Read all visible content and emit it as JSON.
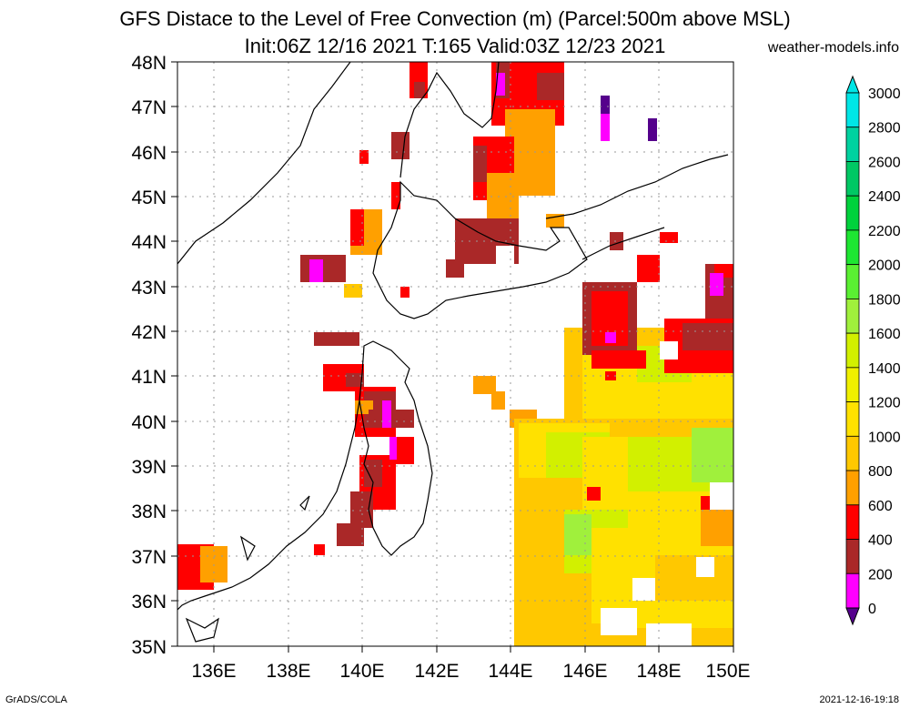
{
  "title_line1": "GFS Distace to the Level of Free Convection (m) (Parcel:500m above MSL)",
  "title_line2": "Init:06Z 12/16 2021 T:165 Valid:03Z 12/23 2021",
  "credit": "weather-models.info",
  "footer_left": "GrADS/COLA",
  "footer_right": "2021-12-16-19:18",
  "map": {
    "lat_labels": [
      "48N",
      "47N",
      "46N",
      "45N",
      "44N",
      "43N",
      "42N",
      "41N",
      "40N",
      "39N",
      "38N",
      "37N",
      "36N",
      "35N"
    ],
    "lon_labels": [
      "136E",
      "138E",
      "140E",
      "142E",
      "144E",
      "146E",
      "148E",
      "150E"
    ],
    "colors": {
      "land_line": "#000000",
      "grid": "#999999"
    }
  },
  "colorbar": {
    "ticks": [
      "3000",
      "2800",
      "2600",
      "2400",
      "2200",
      "2000",
      "1800",
      "1600",
      "1400",
      "1200",
      "1000",
      "800",
      "600",
      "400",
      "200",
      "0"
    ],
    "colors": [
      "#00e6e6",
      "#00d2a0",
      "#00c864",
      "#00d23c",
      "#1ee632",
      "#5af032",
      "#a0f03c",
      "#d2f000",
      "#f0f000",
      "#ffe100",
      "#ffc800",
      "#ffa000",
      "#ff0000",
      "#aa2828",
      "#ff00ff",
      "#55008c"
    ]
  }
}
